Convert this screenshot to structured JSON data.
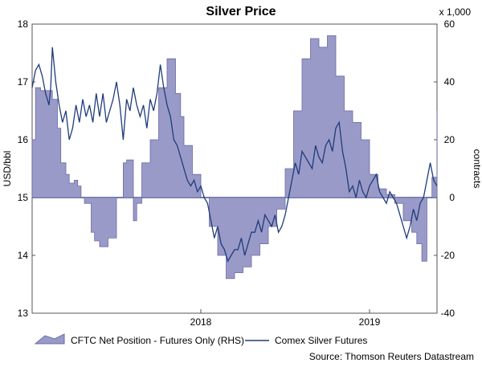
{
  "chart_data": {
    "type": "area",
    "title": "Silver Price",
    "ylabel_left": "USD/bbl",
    "ylabel_right": "contracts",
    "right_multiplier": "x 1,000",
    "source": "Source: Thomson Reuters Datastream",
    "ylim_left": [
      13,
      18
    ],
    "ylim_right": [
      -40,
      60
    ],
    "left_ticks": [
      "13",
      "14",
      "15",
      "16",
      "17",
      "18"
    ],
    "right_ticks": [
      "-40",
      "-20",
      "0",
      "20",
      "40",
      "60"
    ],
    "x_range": [
      2017.0,
      2019.4
    ],
    "x_ticks": [
      {
        "x": 2018.0,
        "label": "2018"
      },
      {
        "x": 2019.0,
        "label": "2019"
      }
    ],
    "colors": {
      "area_fill": "#9a9ac8",
      "area_edge": "#6a6aa8",
      "line": "#1f3c7a",
      "zero_line": "#1f3c7a"
    },
    "series": [
      {
        "name": "CFTC Net Position - Futures Only (RHS)",
        "axis": "right",
        "kind": "step-area",
        "x": [
          2017.0,
          2017.02,
          2017.05,
          2017.12,
          2017.15,
          2017.17,
          2017.2,
          2017.22,
          2017.25,
          2017.27,
          2017.29,
          2017.31,
          2017.35,
          2017.37,
          2017.4,
          2017.45,
          2017.5,
          2017.54,
          2017.56,
          2017.6,
          2017.62,
          2017.65,
          2017.7,
          2017.75,
          2017.8,
          2017.85,
          2017.88,
          2017.9,
          2017.95,
          2018.0,
          2018.05,
          2018.1,
          2018.15,
          2018.2,
          2018.25,
          2018.3,
          2018.35,
          2018.4,
          2018.45,
          2018.5,
          2018.55,
          2018.6,
          2018.65,
          2018.7,
          2018.75,
          2018.8,
          2018.85,
          2018.9,
          2018.95,
          2019.0,
          2019.05,
          2019.1,
          2019.15,
          2019.2,
          2019.25,
          2019.28,
          2019.31,
          2019.34,
          2019.37,
          2019.4
        ],
        "values": [
          20,
          38,
          37,
          34,
          24,
          12,
          8,
          5,
          6,
          4,
          0,
          -2,
          -12,
          -15,
          -17,
          -14,
          0,
          12,
          13,
          -8,
          -2,
          12,
          20,
          38,
          48,
          36,
          28,
          18,
          8,
          0,
          -10,
          -20,
          -28,
          -26,
          -24,
          -20,
          -16,
          -10,
          -4,
          10,
          30,
          48,
          55,
          52,
          56,
          42,
          30,
          26,
          20,
          8,
          3,
          1,
          -2,
          -8,
          -12,
          -16,
          -22,
          0,
          7,
          30
        ]
      },
      {
        "name": "Comex Silver Futures",
        "axis": "left",
        "kind": "line",
        "x": [
          2017.0,
          2017.02,
          2017.04,
          2017.06,
          2017.08,
          2017.1,
          2017.11,
          2017.12,
          2017.14,
          2017.16,
          2017.18,
          2017.2,
          2017.22,
          2017.24,
          2017.26,
          2017.28,
          2017.3,
          2017.32,
          2017.34,
          2017.36,
          2017.38,
          2017.4,
          2017.42,
          2017.44,
          2017.46,
          2017.48,
          2017.5,
          2017.52,
          2017.54,
          2017.56,
          2017.58,
          2017.6,
          2017.62,
          2017.64,
          2017.66,
          2017.68,
          2017.7,
          2017.72,
          2017.74,
          2017.76,
          2017.78,
          2017.8,
          2017.82,
          2017.84,
          2017.86,
          2017.88,
          2017.9,
          2017.92,
          2017.94,
          2017.96,
          2017.98,
          2018.0,
          2018.02,
          2018.04,
          2018.06,
          2018.08,
          2018.1,
          2018.12,
          2018.14,
          2018.16,
          2018.18,
          2018.2,
          2018.22,
          2018.24,
          2018.26,
          2018.28,
          2018.3,
          2018.32,
          2018.34,
          2018.36,
          2018.38,
          2018.4,
          2018.42,
          2018.44,
          2018.46,
          2018.48,
          2018.5,
          2018.52,
          2018.54,
          2018.56,
          2018.58,
          2018.6,
          2018.62,
          2018.64,
          2018.66,
          2018.68,
          2018.7,
          2018.72,
          2018.74,
          2018.76,
          2018.78,
          2018.8,
          2018.82,
          2018.84,
          2018.86,
          2018.88,
          2018.9,
          2018.92,
          2018.94,
          2018.96,
          2018.98,
          2019.0,
          2019.02,
          2019.04,
          2019.06,
          2019.08,
          2019.1,
          2019.12,
          2019.14,
          2019.16,
          2019.18,
          2019.2,
          2019.22,
          2019.24,
          2019.26,
          2019.28,
          2019.3,
          2019.32,
          2019.34,
          2019.36,
          2019.38,
          2019.4
        ],
        "values": [
          16.9,
          17.2,
          17.3,
          17.1,
          16.8,
          16.6,
          16.9,
          17.6,
          17.0,
          16.6,
          16.3,
          16.5,
          16.0,
          16.2,
          16.6,
          16.3,
          16.7,
          16.4,
          16.6,
          16.3,
          16.8,
          16.4,
          16.8,
          16.3,
          16.5,
          16.7,
          17.0,
          16.6,
          16.0,
          16.7,
          16.5,
          16.9,
          16.6,
          16.4,
          16.6,
          16.2,
          16.7,
          16.5,
          16.8,
          17.3,
          16.9,
          16.6,
          16.4,
          16.0,
          15.9,
          15.7,
          15.5,
          15.3,
          15.2,
          15.3,
          15.1,
          15.2,
          15.0,
          14.9,
          14.6,
          14.3,
          14.5,
          14.2,
          14.1,
          13.9,
          14.0,
          14.1,
          14.1,
          14.3,
          14.0,
          14.2,
          14.4,
          14.4,
          14.6,
          14.4,
          14.7,
          14.6,
          14.5,
          14.7,
          14.4,
          14.5,
          14.7,
          15.0,
          15.3,
          15.6,
          15.4,
          15.8,
          15.7,
          15.6,
          15.5,
          15.9,
          15.7,
          15.6,
          15.9,
          16.0,
          15.8,
          16.2,
          16.3,
          15.8,
          15.5,
          15.1,
          15.2,
          15.0,
          15.3,
          15.1,
          15.0,
          15.2,
          15.3,
          15.4,
          15.1,
          15.0,
          14.9,
          15.1,
          15.0,
          14.9,
          14.7,
          14.5,
          14.3,
          14.5,
          14.8,
          14.6,
          14.9,
          15.0,
          15.3,
          15.6,
          15.3,
          15.2
        ]
      }
    ]
  }
}
